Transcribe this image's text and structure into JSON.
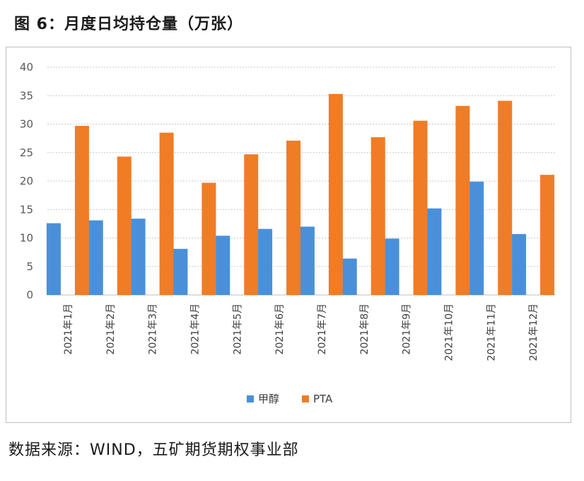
{
  "title": "图 6：月度日均持仓量（万张）",
  "source": "数据来源：WIND，五矿期货期权事业部",
  "chart_data": {
    "type": "bar",
    "categories": [
      "2021年1月",
      "2021年2月",
      "2021年3月",
      "2021年4月",
      "2021年5月",
      "2021年6月",
      "2021年7月",
      "2021年8月",
      "2021年9月",
      "2021年10月",
      "2021年11月",
      "2021年12月"
    ],
    "series": [
      {
        "name": "甲醇",
        "color": "#4a90d9",
        "values": [
          12.6,
          13.1,
          13.4,
          8.1,
          10.4,
          11.6,
          12.0,
          6.4,
          9.9,
          15.2,
          19.9,
          10.7
        ]
      },
      {
        "name": "PTA",
        "color": "#f07c26",
        "values": [
          29.7,
          24.3,
          28.5,
          19.7,
          24.7,
          27.1,
          35.3,
          27.7,
          30.6,
          33.2,
          34.1,
          21.1
        ]
      }
    ],
    "yticks": [
      0,
      5,
      10,
      15,
      20,
      25,
      30,
      35,
      40
    ],
    "ylim": [
      0,
      40
    ],
    "legend": "bottom-center"
  }
}
